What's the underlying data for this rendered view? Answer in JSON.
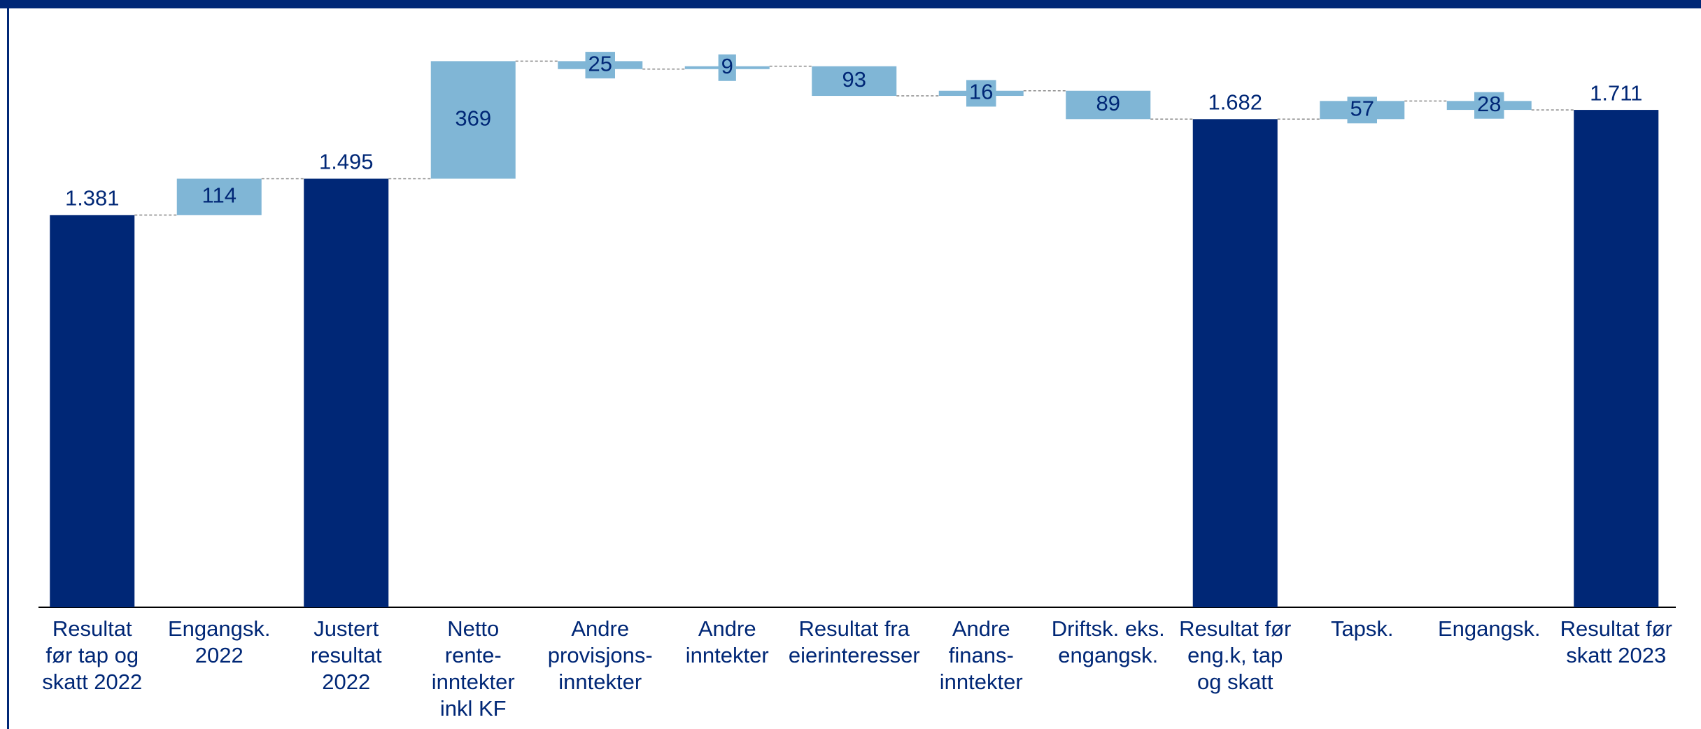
{
  "chart_data": {
    "type": "waterfall",
    "categories": [
      "Resultat\nfør tap og\nskatt 2022",
      "Engangsk.\n2022",
      "Justert\nresultat\n2022",
      "Netto\nrente-\ninntekter\ninkl KF",
      "Andre\nprovisjons-\ninntekter",
      "Andre\ninntekter",
      "Resultat fra\neierinteresser",
      "Andre\nfinans-\ninntekter",
      "Driftsk. eks.\nengangsk.",
      "Resultat før\neng.k, tap\nog skatt",
      "Tapsk.",
      "Engangsk.",
      "Resultat før\nskatt 2023"
    ],
    "values": [
      1381,
      114,
      1495,
      369,
      25,
      9,
      93,
      16,
      89,
      1682,
      57,
      28,
      1711
    ],
    "value_labels": [
      "1.381",
      "114",
      "1.495",
      "369",
      "25",
      "9",
      "93",
      "16",
      "89",
      "1.682",
      "57",
      "28",
      "1.711"
    ],
    "measure": [
      "total",
      "increase",
      "total",
      "increase",
      "decrease",
      "increase",
      "decrease",
      "increase",
      "decrease",
      "total",
      "increase",
      "decrease",
      "total"
    ],
    "total_color": "#002776",
    "change_color": "#80b6d6",
    "ylim": [
      150,
      1900
    ]
  }
}
